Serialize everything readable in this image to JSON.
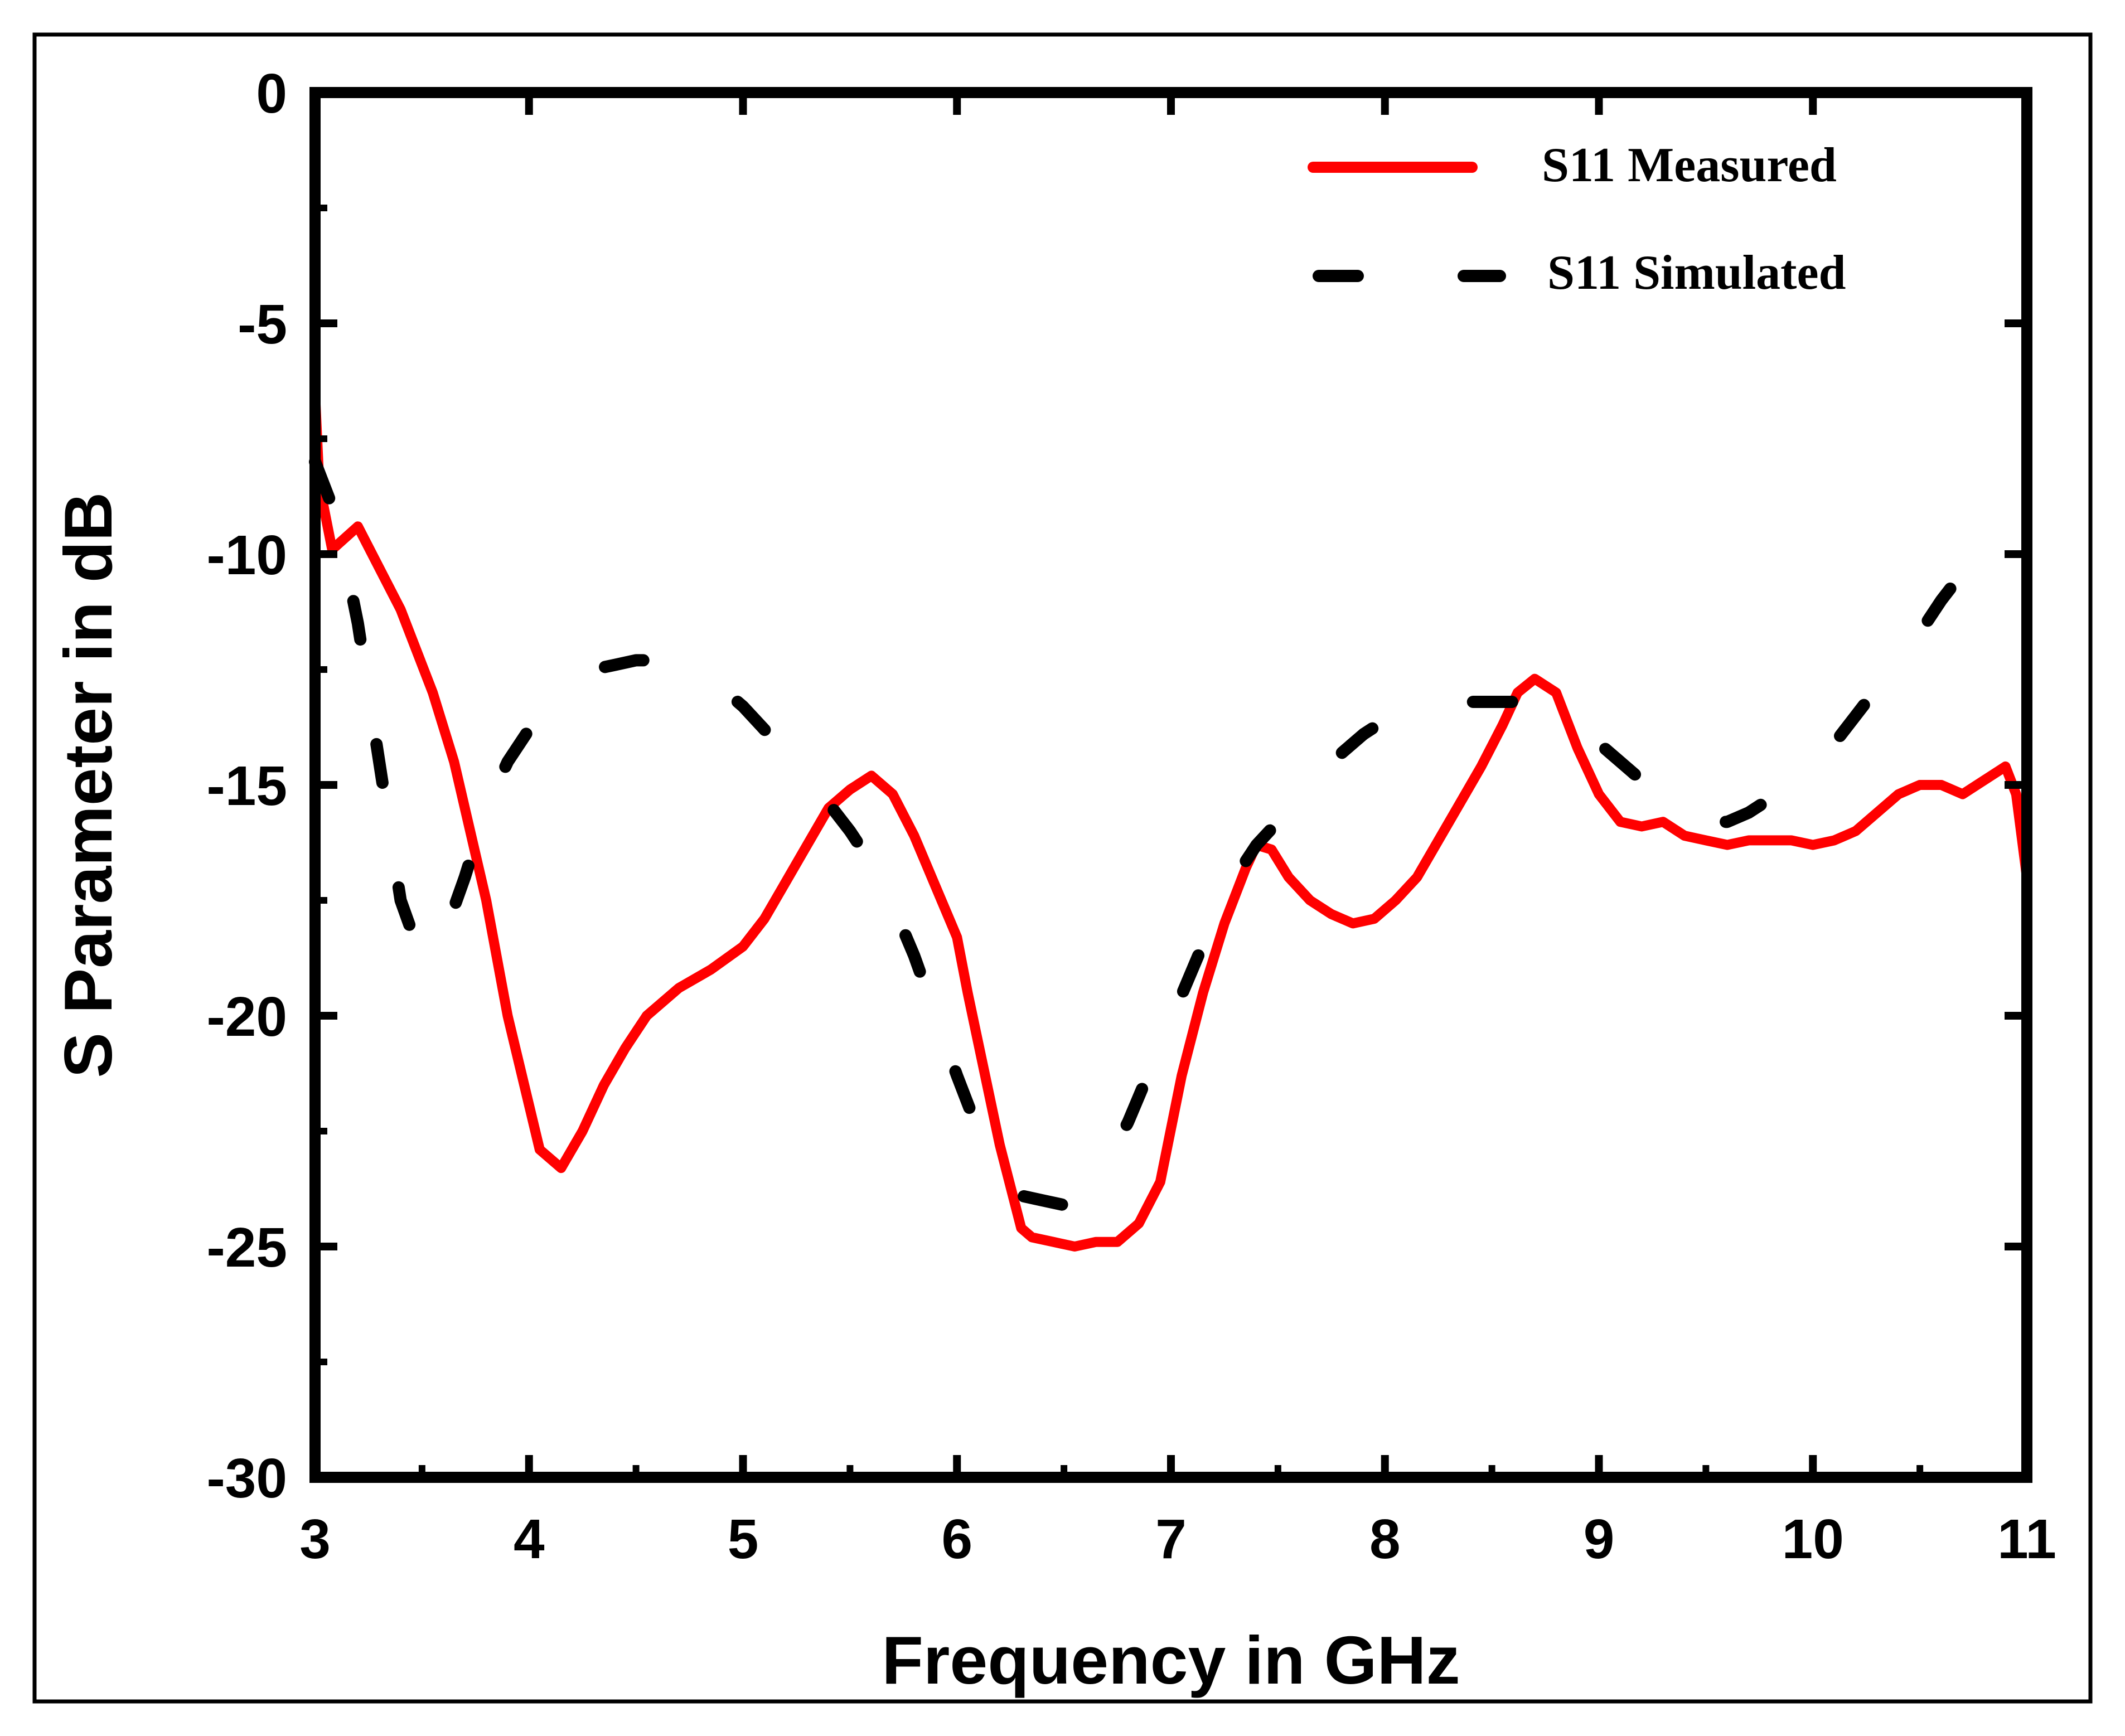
{
  "chart_data": {
    "type": "line",
    "title": "",
    "xlabel": "Frequency in GHz",
    "ylabel": "S Parameter in dB",
    "xlim": [
      3,
      11
    ],
    "ylim": [
      -30,
      0
    ],
    "xticks": [
      3,
      4,
      5,
      6,
      7,
      8,
      9,
      10,
      11
    ],
    "yticks": [
      0,
      -5,
      -10,
      -15,
      -20,
      -25,
      -30
    ],
    "xtick_labels": [
      "3",
      "4",
      "5",
      "6",
      "7",
      "8",
      "9",
      "10",
      "11"
    ],
    "ytick_labels": [
      "0",
      "-5",
      "-10",
      "-15",
      "-20",
      "-25",
      "-30"
    ],
    "grid": false,
    "legend_position": "top-right",
    "series": [
      {
        "name": "S11 Measured",
        "color": "#ff0000",
        "style": "solid",
        "x": [
          3.0,
          3.02,
          3.08,
          3.2,
          3.4,
          3.55,
          3.65,
          3.8,
          3.9,
          4.05,
          4.15,
          4.25,
          4.35,
          4.45,
          4.55,
          4.7,
          4.85,
          5.0,
          5.1,
          5.2,
          5.3,
          5.4,
          5.5,
          5.6,
          5.7,
          5.8,
          5.9,
          6.0,
          6.05,
          6.1,
          6.2,
          6.3,
          6.35,
          6.45,
          6.55,
          6.65,
          6.75,
          6.85,
          6.95,
          7.05,
          7.15,
          7.25,
          7.35,
          7.4,
          7.47,
          7.55,
          7.65,
          7.75,
          7.85,
          7.95,
          8.05,
          8.15,
          8.25,
          8.35,
          8.45,
          8.55,
          8.62,
          8.7,
          8.8,
          8.9,
          9.0,
          9.1,
          9.2,
          9.3,
          9.4,
          9.5,
          9.6,
          9.7,
          9.8,
          9.9,
          10.0,
          10.1,
          10.2,
          10.3,
          10.4,
          10.5,
          10.6,
          10.7,
          10.8,
          10.9,
          10.95,
          11.0
        ],
        "y": [
          -6.5,
          -8.5,
          -9.9,
          -9.4,
          -11.2,
          -13.0,
          -14.5,
          -17.5,
          -20.0,
          -22.9,
          -23.3,
          -22.5,
          -21.5,
          -20.7,
          -20.0,
          -19.4,
          -19.0,
          -18.5,
          -17.9,
          -17.1,
          -16.3,
          -15.5,
          -15.1,
          -14.8,
          -15.2,
          -16.1,
          -17.2,
          -18.3,
          -19.5,
          -20.6,
          -22.8,
          -24.6,
          -24.8,
          -24.9,
          -25.0,
          -24.9,
          -24.9,
          -24.5,
          -23.6,
          -21.3,
          -19.5,
          -18.0,
          -16.8,
          -16.3,
          -16.4,
          -17.0,
          -17.5,
          -17.8,
          -18.0,
          -17.9,
          -17.5,
          -17.0,
          -16.2,
          -15.4,
          -14.6,
          -13.7,
          -13.0,
          -12.7,
          -13.0,
          -14.2,
          -15.2,
          -15.8,
          -15.9,
          -15.8,
          -16.1,
          -16.2,
          -16.3,
          -16.2,
          -16.2,
          -16.2,
          -16.3,
          -16.2,
          -16.0,
          -15.6,
          -15.2,
          -15.0,
          -15.0,
          -15.2,
          -14.9,
          -14.6,
          -15.2,
          -17.0
        ]
      },
      {
        "name": "S11 Simulated",
        "color": "#000000",
        "style": "dashed",
        "x": [
          3.0,
          3.1,
          3.2,
          3.3,
          3.4,
          3.5,
          3.6,
          3.7,
          3.8,
          3.9,
          4.0,
          4.1,
          4.2,
          4.3,
          4.4,
          4.5,
          4.6,
          4.7,
          4.8,
          4.9,
          5.0,
          5.1,
          5.2,
          5.3,
          5.4,
          5.5,
          5.6,
          5.7,
          5.8,
          5.9,
          6.0,
          6.1,
          6.2,
          6.3,
          6.4,
          6.5,
          6.6,
          6.7,
          6.8,
          6.9,
          7.0,
          7.1,
          7.2,
          7.3,
          7.4,
          7.5,
          7.6,
          7.7,
          7.8,
          7.9,
          8.0,
          8.1,
          8.2,
          8.3,
          8.4,
          8.5,
          8.6,
          8.7,
          8.8,
          8.9,
          9.0,
          9.1,
          9.2,
          9.3,
          9.4,
          9.5,
          9.6,
          9.7,
          9.8,
          9.9,
          10.0,
          10.1,
          10.2,
          10.3,
          10.4,
          10.5,
          10.6,
          10.7,
          10.8,
          10.9,
          11.0
        ],
        "y": [
          -8.0,
          -9.2,
          -11.5,
          -14.5,
          -17.5,
          -18.8,
          -18.3,
          -17.0,
          -15.5,
          -14.5,
          -13.8,
          -13.2,
          -12.8,
          -12.5,
          -12.4,
          -12.3,
          -12.3,
          -12.4,
          -12.6,
          -12.9,
          -13.3,
          -13.8,
          -14.3,
          -14.8,
          -15.4,
          -16.0,
          -16.7,
          -17.6,
          -18.7,
          -20.0,
          -21.3,
          -22.5,
          -23.4,
          -23.9,
          -24.0,
          -24.1,
          -23.8,
          -23.2,
          -22.3,
          -21.2,
          -20.1,
          -19.0,
          -17.9,
          -17.0,
          -16.3,
          -15.8,
          -15.3,
          -14.8,
          -14.3,
          -13.9,
          -13.6,
          -13.4,
          -13.3,
          -13.2,
          -13.2,
          -13.2,
          -13.2,
          -13.3,
          -13.5,
          -13.8,
          -14.1,
          -14.5,
          -14.9,
          -15.3,
          -15.6,
          -15.8,
          -15.8,
          -15.6,
          -15.3,
          -15.0,
          -14.6,
          -14.1,
          -13.5,
          -12.9,
          -12.3,
          -11.7,
          -11.0,
          -10.4,
          -10.1,
          -10.0,
          -10.0
        ]
      }
    ]
  }
}
